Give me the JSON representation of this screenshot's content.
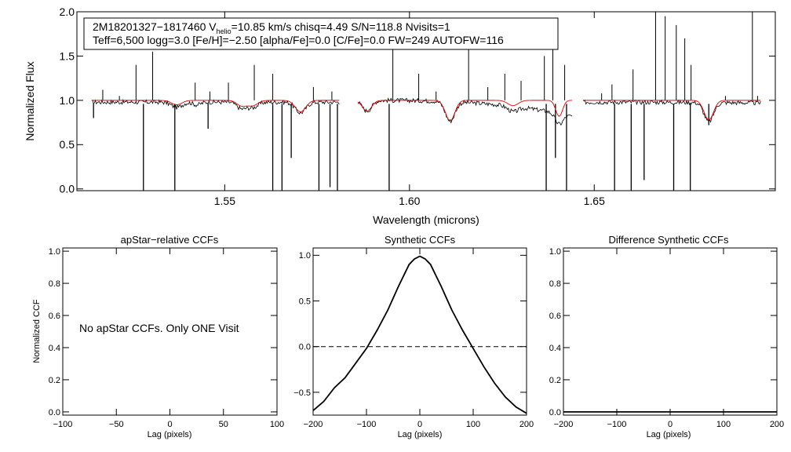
{
  "chart_data": [
    {
      "type": "line",
      "panel": "spectrum",
      "title": "",
      "xlabel": "Wavelength (microns)",
      "ylabel": "Normalized Flux",
      "xlim": [
        1.51,
        1.699
      ],
      "ylim": [
        -0.02,
        2.0
      ],
      "xticks": [
        "1.55",
        "1.60",
        "1.65"
      ],
      "xtick_values": [
        1.55,
        1.6,
        1.65
      ],
      "yticks": [
        "0.0",
        "0.5",
        "1.0",
        "1.5",
        "2.0"
      ],
      "ytick_values": [
        0.0,
        0.5,
        1.0,
        1.5,
        2.0
      ],
      "info_line1_text": "2M18201327−1817460  V",
      "info_line1_sub": "helio",
      "info_line1_rest": "=10.85 km/s  chisq=4.49  S/N=118.8  Nvisits=1",
      "info_line2": "Teff=6,500 logg=3.0 [Fe/H]=−2.50 [alpha/Fe]=0.0 [C/Fe]=0.0 FW=249 AUTOFW=116",
      "series": [
        {
          "name": "observed",
          "color": "#000000",
          "chips": [
            {
              "range": [
                1.514,
                1.581
              ],
              "start": 0.98,
              "end": 0.98
            },
            {
              "range": [
                1.586,
                1.644
              ],
              "start": 1.0,
              "end": 0.82
            },
            {
              "range": [
                1.647,
                1.695
              ],
              "start": 0.98,
              "end": 0.97
            }
          ],
          "absorption_lines": [
            {
              "center": 1.537,
              "depth": 0.06,
              "width": 0.002
            },
            {
              "center": 1.5425,
              "depth": 0.03,
              "width": 0.0015
            },
            {
              "center": 1.5545,
              "depth": 0.07,
              "width": 0.0018
            },
            {
              "center": 1.5575,
              "depth": 0.06,
              "width": 0.002
            },
            {
              "center": 1.5705,
              "depth": 0.12,
              "width": 0.002
            },
            {
              "center": 1.5885,
              "depth": 0.12,
              "width": 0.0018
            },
            {
              "center": 1.611,
              "depth": 0.22,
              "width": 0.0018
            },
            {
              "center": 1.628,
              "depth": 0.06,
              "width": 0.002
            },
            {
              "center": 1.6405,
              "depth": 0.12,
              "width": 0.0015
            },
            {
              "center": 1.681,
              "depth": 0.22,
              "width": 0.0018
            }
          ],
          "spikes": [
            {
              "x": 1.517,
              "y": 1.12
            },
            {
              "x": 1.5215,
              "y": 1.05
            },
            {
              "x": 1.526,
              "y": 1.4
            },
            {
              "x": 1.5305,
              "y": 1.55
            },
            {
              "x": 1.542,
              "y": 1.2
            },
            {
              "x": 1.546,
              "y": 1.1
            },
            {
              "x": 1.551,
              "y": 1.2
            },
            {
              "x": 1.558,
              "y": 1.4
            },
            {
              "x": 1.563,
              "y": 1.3
            },
            {
              "x": 1.574,
              "y": 1.15
            },
            {
              "x": 1.579,
              "y": 1.1
            },
            {
              "x": 1.5955,
              "y": 1.75
            },
            {
              "x": 1.6025,
              "y": 1.3
            },
            {
              "x": 1.6072,
              "y": 1.1
            },
            {
              "x": 1.616,
              "y": 1.6
            },
            {
              "x": 1.6212,
              "y": 1.15
            },
            {
              "x": 1.6258,
              "y": 1.3
            },
            {
              "x": 1.6302,
              "y": 1.22
            },
            {
              "x": 1.6365,
              "y": 1.5
            },
            {
              "x": 1.6388,
              "y": 1.65
            },
            {
              "x": 1.642,
              "y": 1.4
            },
            {
              "x": 1.652,
              "y": 1.08
            },
            {
              "x": 1.6548,
              "y": 1.18
            },
            {
              "x": 1.6605,
              "y": 1.35
            },
            {
              "x": 1.6666,
              "y": 2.0
            },
            {
              "x": 1.6692,
              "y": 1.95
            },
            {
              "x": 1.6722,
              "y": 1.85
            },
            {
              "x": 1.6745,
              "y": 1.7
            },
            {
              "x": 1.6762,
              "y": 1.4
            },
            {
              "x": 1.6855,
              "y": 1.05
            },
            {
              "x": 1.6928,
              "y": 2.0
            },
            {
              "x": 1.6942,
              "y": 1.05
            }
          ],
          "dips": [
            {
              "x": 1.5145,
              "y": 0.8
            },
            {
              "x": 1.528,
              "y": -0.02
            },
            {
              "x": 1.5365,
              "y": -0.02
            },
            {
              "x": 1.5455,
              "y": 0.68
            },
            {
              "x": 1.563,
              "y": -0.02
            },
            {
              "x": 1.5655,
              "y": -0.02
            },
            {
              "x": 1.568,
              "y": 0.35
            },
            {
              "x": 1.5755,
              "y": -0.02
            },
            {
              "x": 1.5785,
              "y": 0.02
            },
            {
              "x": 1.5805,
              "y": -0.02
            },
            {
              "x": 1.5945,
              "y": -0.02
            },
            {
              "x": 1.637,
              "y": -0.02
            },
            {
              "x": 1.6395,
              "y": 0.35
            },
            {
              "x": 1.6425,
              "y": -0.02
            },
            {
              "x": 1.6555,
              "y": -0.02
            },
            {
              "x": 1.66,
              "y": -0.02
            },
            {
              "x": 1.6635,
              "y": 0.1
            },
            {
              "x": 1.6715,
              "y": -0.02
            },
            {
              "x": 1.676,
              "y": -0.02
            },
            {
              "x": 1.681,
              "y": 0.72
            }
          ]
        },
        {
          "name": "model",
          "color": "#e00000",
          "chips": [
            {
              "range": [
                1.514,
                1.581
              ],
              "start": 1.0,
              "end": 1.0
            },
            {
              "range": [
                1.586,
                1.644
              ],
              "start": 1.0,
              "end": 1.0
            },
            {
              "range": [
                1.647,
                1.695
              ],
              "start": 1.0,
              "end": 1.0
            }
          ],
          "absorption_lines": [
            {
              "center": 1.537,
              "depth": 0.05,
              "width": 0.002
            },
            {
              "center": 1.5545,
              "depth": 0.06,
              "width": 0.0018
            },
            {
              "center": 1.5575,
              "depth": 0.06,
              "width": 0.002
            },
            {
              "center": 1.5705,
              "depth": 0.13,
              "width": 0.002
            },
            {
              "center": 1.5885,
              "depth": 0.12,
              "width": 0.0018
            },
            {
              "center": 1.611,
              "depth": 0.23,
              "width": 0.0018
            },
            {
              "center": 1.628,
              "depth": 0.06,
              "width": 0.002
            },
            {
              "center": 1.6405,
              "depth": 0.18,
              "width": 0.0013
            },
            {
              "center": 1.681,
              "depth": 0.22,
              "width": 0.0018
            }
          ]
        }
      ]
    },
    {
      "type": "line",
      "panel": "apstar",
      "title": "apStar−relative CCFs",
      "xlabel": "Lag (pixels)",
      "ylabel": "Normalized CCF",
      "xlim": [
        -100,
        100
      ],
      "ylim": [
        -0.02,
        1.02
      ],
      "xticks": [
        "−100",
        "−50",
        "0",
        "50",
        "100"
      ],
      "xtick_values": [
        -100,
        -50,
        0,
        50,
        100
      ],
      "yticks": [
        "0.0",
        "0.2",
        "0.4",
        "0.6",
        "0.8",
        "1.0"
      ],
      "ytick_values": [
        0.0,
        0.2,
        0.4,
        0.6,
        0.8,
        1.0
      ],
      "annotation": "No apStar CCFs.  Only ONE Visit",
      "series": []
    },
    {
      "type": "line",
      "panel": "synthetic",
      "title": "Synthetic CCFs",
      "xlabel": "Lag (pixels)",
      "ylabel": "",
      "xlim": [
        -200,
        200
      ],
      "ylim": [
        -0.75,
        1.08
      ],
      "xticks": [
        "−200",
        "−100",
        "0",
        "100",
        "200"
      ],
      "xtick_values": [
        -200,
        -100,
        0,
        100,
        200
      ],
      "yticks": [
        "−0.5",
        "0.0",
        "0.5",
        "1.0"
      ],
      "ytick_values": [
        -0.5,
        0.0,
        0.5,
        1.0
      ],
      "reference_line": 0.0,
      "series": [
        {
          "name": "synthetic ccf",
          "x": [
            -200,
            -180,
            -160,
            -140,
            -120,
            -100,
            -80,
            -60,
            -40,
            -20,
            -10,
            0,
            10,
            20,
            40,
            60,
            80,
            100,
            120,
            140,
            160,
            180,
            200
          ],
          "y": [
            -0.7,
            -0.6,
            -0.45,
            -0.34,
            -0.18,
            -0.02,
            0.18,
            0.4,
            0.66,
            0.9,
            0.96,
            0.99,
            0.96,
            0.9,
            0.66,
            0.4,
            0.18,
            -0.02,
            -0.22,
            -0.4,
            -0.55,
            -0.66,
            -0.73
          ]
        }
      ]
    },
    {
      "type": "line",
      "panel": "difference",
      "title": "Difference Synthetic CCFs",
      "xlabel": "Lag (pixels)",
      "ylabel": "",
      "xlim": [
        -200,
        200
      ],
      "ylim": [
        -0.02,
        1.02
      ],
      "xticks": [
        "−200",
        "−100",
        "0",
        "100",
        "200"
      ],
      "xtick_values": [
        -200,
        -100,
        0,
        100,
        200
      ],
      "yticks": [
        "0.0",
        "0.2",
        "0.4",
        "0.6",
        "0.8",
        "1.0"
      ],
      "ytick_values": [
        0.0,
        0.2,
        0.4,
        0.6,
        0.8,
        1.0
      ],
      "series": [
        {
          "name": "difference ccf",
          "x": [
            -200,
            -100,
            0,
            100,
            200
          ],
          "y": [
            0.0,
            0.0,
            0.0,
            0.0,
            0.0
          ]
        }
      ]
    }
  ]
}
